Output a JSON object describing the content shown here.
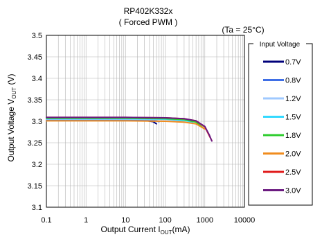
{
  "chart_data": {
    "type": "line",
    "title": "RP402K332x",
    "subtitle": "( Forced PWM )",
    "annotation": "(Ta = 25°C)",
    "xlabel": {
      "main": "Output Current  I",
      "sub": "OUT",
      "unit": "(mA)"
    },
    "ylabel": {
      "main": "Output Voltage V",
      "sub": "OUT",
      "unit": " (V)"
    },
    "x_scale": "log",
    "xlim": [
      0.1,
      10000
    ],
    "ylim": [
      3.1,
      3.5
    ],
    "x_ticks": [
      "0.1",
      "1",
      "10",
      "100",
      "1000",
      "10000"
    ],
    "y_ticks": [
      "3.1",
      "3.15",
      "3.2",
      "3.25",
      "3.3",
      "3.35",
      "3.4",
      "3.45",
      "3.5"
    ],
    "grid": true,
    "legend": {
      "title": "Input Voltage",
      "placement": "right"
    },
    "series": [
      {
        "name": "0.7V",
        "color": "#00007a",
        "points": [
          [
            0.1,
            3.303
          ],
          [
            1,
            3.303
          ],
          [
            10,
            3.303
          ],
          [
            30,
            3.302
          ],
          [
            50,
            3.299
          ],
          [
            60,
            3.294
          ]
        ]
      },
      {
        "name": "0.8V",
        "color": "#3f6fe6",
        "points": [
          [
            0.1,
            3.304
          ],
          [
            1,
            3.304
          ],
          [
            10,
            3.304
          ],
          [
            40,
            3.303
          ],
          [
            60,
            3.301
          ],
          [
            70,
            3.299
          ]
        ]
      },
      {
        "name": "1.2V",
        "color": "#9fc9ff",
        "points": [
          [
            0.1,
            3.305
          ],
          [
            1,
            3.305
          ],
          [
            10,
            3.305
          ],
          [
            100,
            3.304
          ],
          [
            200,
            3.302
          ],
          [
            300,
            3.299
          ]
        ]
      },
      {
        "name": "1.5V",
        "color": "#33d9ff",
        "points": [
          [
            0.1,
            3.306
          ],
          [
            1,
            3.306
          ],
          [
            10,
            3.306
          ],
          [
            100,
            3.305
          ],
          [
            300,
            3.302
          ],
          [
            500,
            3.298
          ]
        ]
      },
      {
        "name": "1.8V",
        "color": "#2ecc2e",
        "points": [
          [
            0.1,
            3.307
          ],
          [
            1,
            3.307
          ],
          [
            10,
            3.307
          ],
          [
            100,
            3.306
          ],
          [
            300,
            3.304
          ],
          [
            600,
            3.298
          ],
          [
            900,
            3.285
          ]
        ]
      },
      {
        "name": "2.0V",
        "color": "#f08c1e",
        "points": [
          [
            0.1,
            3.301
          ],
          [
            1,
            3.301
          ],
          [
            10,
            3.301
          ],
          [
            100,
            3.3
          ],
          [
            300,
            3.298
          ],
          [
            600,
            3.294
          ],
          [
            1000,
            3.282
          ]
        ]
      },
      {
        "name": "2.5V",
        "color": "#e01a1a",
        "points": [
          [
            0.1,
            3.309
          ],
          [
            1,
            3.309
          ],
          [
            10,
            3.309
          ],
          [
            100,
            3.308
          ],
          [
            300,
            3.306
          ],
          [
            600,
            3.301
          ],
          [
            1000,
            3.287
          ],
          [
            1300,
            3.266
          ],
          [
            1500,
            3.255
          ]
        ]
      },
      {
        "name": "3.0V",
        "color": "#6b1a80",
        "points": [
          [
            0.1,
            3.309
          ],
          [
            1,
            3.309
          ],
          [
            10,
            3.309
          ],
          [
            100,
            3.308
          ],
          [
            300,
            3.306
          ],
          [
            600,
            3.301
          ],
          [
            1000,
            3.288
          ],
          [
            1300,
            3.268
          ],
          [
            1500,
            3.254
          ]
        ]
      }
    ]
  }
}
